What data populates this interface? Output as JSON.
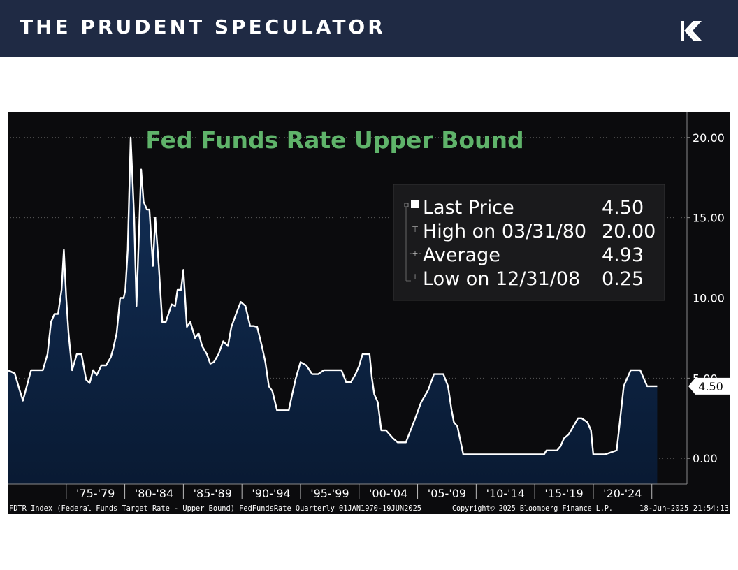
{
  "brand": {
    "title": "THE PRUDENT SPECULATOR",
    "logo_icon": "prudent-speculator-logo-icon"
  },
  "chart_data": {
    "type": "area",
    "title": "Fed Funds Rate Upper Bound",
    "xlabel": "",
    "ylabel": "",
    "ylim": [
      -1.6,
      21.6
    ],
    "y_ticks": [
      "20.00",
      "15.00",
      "10.00",
      "5.00",
      "0.00"
    ],
    "x_labels": [
      "'75-'79",
      "'80-'84",
      "'85-'89",
      "'90-'94",
      "'95-'99",
      "'00-'04",
      "'05-'09",
      "'10-'14",
      "'15-'19",
      "'20-'24"
    ],
    "series": [
      {
        "name": "FDTR Index",
        "x": [
          1970.0,
          1970.6,
          1971.0,
          1971.3,
          1972.0,
          1972.5,
          1973.0,
          1973.4,
          1973.7,
          1974.0,
          1974.3,
          1974.6,
          1974.8,
          1975.0,
          1975.2,
          1975.5,
          1975.9,
          1976.3,
          1976.7,
          1977.0,
          1977.3,
          1977.6,
          1978.0,
          1978.4,
          1978.8,
          1979.0,
          1979.3,
          1979.6,
          1979.9,
          1980.05,
          1980.25,
          1980.5,
          1980.8,
          1981.0,
          1981.4,
          1981.6,
          1981.9,
          1982.1,
          1982.4,
          1982.6,
          1982.9,
          1983.2,
          1983.5,
          1984.0,
          1984.3,
          1984.5,
          1984.8,
          1985.0,
          1985.3,
          1985.6,
          1986.0,
          1986.3,
          1986.6,
          1987.0,
          1987.3,
          1987.6,
          1988.0,
          1988.4,
          1988.8,
          1989.1,
          1989.5,
          1989.9,
          1990.3,
          1990.7,
          1991.0,
          1991.3,
          1991.7,
          1992.0,
          1992.3,
          1992.6,
          1993.0,
          1993.5,
          1994.0,
          1994.3,
          1994.6,
          1995.0,
          1995.5,
          1996.0,
          1996.5,
          1997.0,
          1997.5,
          1998.0,
          1998.5,
          1998.9,
          1999.3,
          1999.7,
          2000.0,
          2000.3,
          2000.6,
          2000.9,
          2001.1,
          2001.3,
          2001.6,
          2001.9,
          2002.3,
          2002.9,
          2003.3,
          2003.6,
          2004.0,
          2004.4,
          2004.8,
          2005.3,
          2005.9,
          2006.4,
          2006.7,
          2007.2,
          2007.6,
          2007.9,
          2008.1,
          2008.4,
          2008.9,
          2009.0,
          2010.0,
          2012.0,
          2014.0,
          2015.8,
          2016.0,
          2016.9,
          2017.2,
          2017.5,
          2017.9,
          2018.3,
          2018.7,
          2019.0,
          2019.5,
          2019.8,
          2020.0,
          2020.3,
          2021.0,
          2022.0,
          2022.3,
          2022.6,
          2022.9,
          2023.2,
          2023.6,
          2024.0,
          2024.6,
          2024.8,
          2025.0,
          2025.46
        ],
        "values": [
          5.5,
          5.3,
          4.3,
          3.6,
          5.5,
          5.5,
          5.5,
          6.5,
          8.5,
          9.0,
          9.0,
          10.5,
          13.0,
          10.0,
          7.8,
          5.5,
          6.5,
          6.5,
          4.9,
          4.7,
          5.5,
          5.2,
          5.8,
          5.8,
          6.3,
          6.8,
          7.8,
          10.0,
          10.0,
          10.5,
          13.0,
          20.0,
          15.0,
          9.5,
          18.0,
          16.0,
          15.5,
          15.5,
          12.0,
          15.0,
          12.0,
          8.5,
          8.5,
          9.6,
          9.5,
          10.5,
          10.5,
          11.75,
          8.2,
          8.5,
          7.5,
          7.8,
          7.0,
          6.5,
          5.9,
          6.0,
          6.5,
          7.3,
          7.0,
          8.2,
          9.0,
          9.75,
          9.5,
          8.25,
          8.25,
          8.2,
          7.0,
          6.0,
          4.5,
          4.2,
          3.0,
          3.0,
          3.0,
          4.0,
          5.0,
          6.0,
          5.8,
          5.25,
          5.25,
          5.5,
          5.5,
          5.5,
          5.5,
          4.75,
          4.75,
          5.25,
          5.75,
          6.5,
          6.5,
          6.5,
          5.0,
          4.0,
          3.5,
          1.75,
          1.75,
          1.25,
          1.0,
          1.0,
          1.0,
          1.75,
          2.5,
          3.5,
          4.25,
          5.25,
          5.25,
          5.25,
          4.5,
          3.0,
          2.25,
          2.0,
          0.25,
          0.25,
          0.25,
          0.25,
          0.25,
          0.25,
          0.5,
          0.5,
          0.75,
          1.25,
          1.5,
          2.0,
          2.5,
          2.5,
          2.25,
          1.75,
          0.25,
          0.25,
          0.25,
          0.5,
          2.5,
          4.5,
          5.0,
          5.5,
          5.5,
          5.5,
          4.5,
          4.5,
          4.5,
          4.5
        ]
      }
    ],
    "legend": {
      "position": "top-right",
      "rows": [
        {
          "label": "Last Price",
          "value": "4.50"
        },
        {
          "label": "High on 03/31/80",
          "value": "20.00"
        },
        {
          "label": "Average",
          "value": "4.93"
        },
        {
          "label": "Low on 12/31/08",
          "value": "0.25"
        }
      ]
    },
    "last_value_label": "4.50",
    "footer_left": "FDTR Index (Federal Funds Target Rate - Upper Bound) FedFundsRate  Quarterly 01JAN1970-19JUN2025",
    "footer_mid": "Copyright© 2025 Bloomberg Finance L.P.",
    "footer_right": "18-Jun-2025 21:54:13",
    "colors": {
      "background": "#0b0b0d",
      "line": "#ffffff",
      "fill_top": "#133058",
      "fill_bottom": "#091a33",
      "title": "#5fb36a",
      "grid": "#5a5a5a"
    }
  }
}
